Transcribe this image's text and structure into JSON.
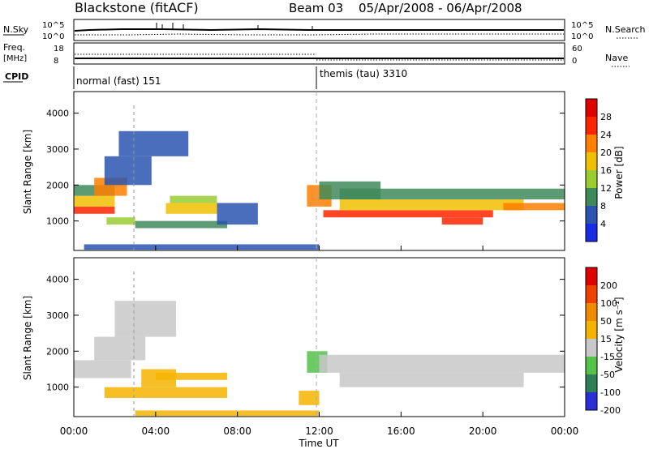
{
  "header": {
    "title": "Blackstone (fitACF)",
    "beam": "Beam 03",
    "date_range": "05/Apr/2008 - 06/Apr/2008"
  },
  "aux_panels": {
    "nsky_label": "N.Sky",
    "nsky_ticks": [
      "10^5",
      "10^0"
    ],
    "nsearch_label": "N.Search",
    "nsearch_ticks": [
      "10^5",
      "10^0"
    ],
    "freq_label": "Freq.",
    "freq_unit": "[MHz]",
    "freq_ticks": [
      "18",
      "8"
    ],
    "nave_label": "Nave",
    "nave_ticks": [
      "60",
      "0"
    ],
    "cpid_label": "CPID",
    "cpid_segments": [
      "normal (fast) 151",
      "themis (tau) 3310"
    ]
  },
  "chart_data": [
    {
      "type": "heatmap",
      "name": "power",
      "ylabel": "Slant Range [km]",
      "ylim": [
        180,
        4600
      ],
      "yticks": [
        "1000",
        "2000",
        "3000",
        "4000"
      ],
      "xlim_hours": [
        0,
        24
      ],
      "colorbar_label": "Power [dB]",
      "colorbar_ticks": [
        "28",
        "24",
        "20",
        "16",
        "12",
        "8",
        "4"
      ],
      "colors": [
        "#1a2be6",
        "#2a54b0",
        "#3f8a5a",
        "#9acd32",
        "#f0c000",
        "#ff7f00",
        "#ff2400",
        "#e00000"
      ],
      "bands": [
        {
          "x0": 0,
          "x1": 2.0,
          "y0": 1200,
          "y1": 1400,
          "level": 6
        },
        {
          "x0": 0,
          "x1": 2.0,
          "y0": 1400,
          "y1": 1700,
          "level": 4
        },
        {
          "x0": 0,
          "x1": 2.0,
          "y0": 1700,
          "y1": 2000,
          "level": 2
        },
        {
          "x0": 1.0,
          "x1": 2.6,
          "y0": 1700,
          "y1": 2200,
          "level": 5
        },
        {
          "x0": 1.5,
          "x1": 3.8,
          "y0": 2000,
          "y1": 2800,
          "level": 1
        },
        {
          "x0": 2.2,
          "x1": 5.6,
          "y0": 2800,
          "y1": 3500,
          "level": 1
        },
        {
          "x0": 1.6,
          "x1": 3.0,
          "y0": 900,
          "y1": 1100,
          "level": 3
        },
        {
          "x0": 3.0,
          "x1": 7.5,
          "y0": 800,
          "y1": 1000,
          "level": 2
        },
        {
          "x0": 4.5,
          "x1": 7.0,
          "y0": 1200,
          "y1": 1500,
          "level": 4
        },
        {
          "x0": 4.7,
          "x1": 7.0,
          "y0": 1500,
          "y1": 1700,
          "level": 3
        },
        {
          "x0": 7.0,
          "x1": 9.0,
          "y0": 900,
          "y1": 1500,
          "level": 1
        },
        {
          "x0": 11.4,
          "x1": 12.6,
          "y0": 1400,
          "y1": 2000,
          "level": 5
        },
        {
          "x0": 12.0,
          "x1": 15.0,
          "y0": 1600,
          "y1": 2100,
          "level": 2
        },
        {
          "x0": 12.2,
          "x1": 20.5,
          "y0": 1100,
          "y1": 1300,
          "level": 6
        },
        {
          "x0": 13.0,
          "x1": 22.0,
          "y0": 1300,
          "y1": 1600,
          "level": 4
        },
        {
          "x0": 13.0,
          "x1": 24,
          "y0": 1600,
          "y1": 1900,
          "level": 2
        },
        {
          "x0": 18.0,
          "x1": 20.0,
          "y0": 900,
          "y1": 1100,
          "level": 6
        },
        {
          "x0": 21.0,
          "x1": 24,
          "y0": 1300,
          "y1": 1500,
          "level": 5
        },
        {
          "x0": 0.5,
          "x1": 12.0,
          "y0": 200,
          "y1": 350,
          "level": 1
        }
      ]
    },
    {
      "type": "heatmap",
      "name": "velocity",
      "ylabel": "Slant Range [km]",
      "ylim": [
        180,
        4600
      ],
      "yticks": [
        "1000",
        "2000",
        "3000",
        "4000"
      ],
      "xlim_hours": [
        0,
        24
      ],
      "xticks": [
        "00:00",
        "04:00",
        "08:00",
        "12:00",
        "16:00",
        "20:00",
        "00:00"
      ],
      "xlabel": "Time UT",
      "colorbar_label": "Velocity [m s⁻¹]",
      "colorbar_ticks": [
        "200",
        "100",
        "50",
        "15",
        "-15",
        "-50",
        "-100",
        "-200"
      ],
      "colors": [
        "#2a2ed6",
        "#2e7f55",
        "#54c24a",
        "#c8c8c8",
        "#f4b400",
        "#f08a00",
        "#f04000",
        "#e00000"
      ],
      "bands": [
        {
          "x0": 0,
          "x1": 2.8,
          "y0": 1250,
          "y1": 1750,
          "level": 3
        },
        {
          "x0": 1.0,
          "x1": 3.5,
          "y0": 1750,
          "y1": 2400,
          "level": 3
        },
        {
          "x0": 2.0,
          "x1": 5.0,
          "y0": 2400,
          "y1": 3400,
          "level": 3
        },
        {
          "x0": 1.5,
          "x1": 7.5,
          "y0": 700,
          "y1": 1000,
          "level": 4
        },
        {
          "x0": 3.3,
          "x1": 5.0,
          "y0": 1000,
          "y1": 1500,
          "level": 4
        },
        {
          "x0": 4.0,
          "x1": 7.5,
          "y0": 1200,
          "y1": 1400,
          "level": 4
        },
        {
          "x0": 11.4,
          "x1": 12.4,
          "y0": 1400,
          "y1": 2000,
          "level": 2
        },
        {
          "x0": 12.0,
          "x1": 24,
          "y0": 1400,
          "y1": 1900,
          "level": 3
        },
        {
          "x0": 13.0,
          "x1": 22.0,
          "y0": 1000,
          "y1": 1400,
          "level": 3
        },
        {
          "x0": 11.0,
          "x1": 12.0,
          "y0": 500,
          "y1": 900,
          "level": 4
        },
        {
          "x0": 3.0,
          "x1": 12.0,
          "y0": 200,
          "y1": 350,
          "level": 4
        }
      ]
    }
  ]
}
